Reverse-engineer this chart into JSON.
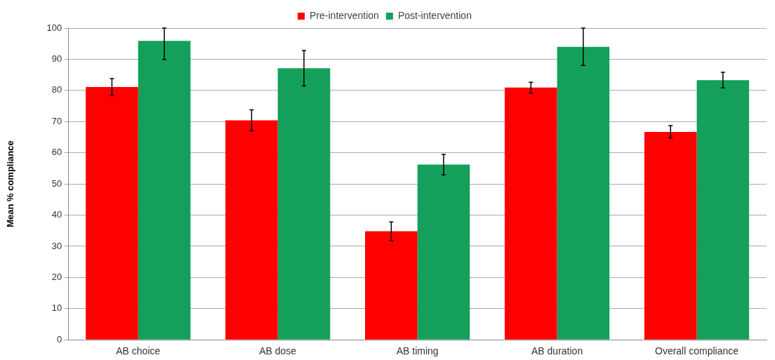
{
  "chart_data": {
    "type": "bar",
    "ylabel": "Mean % compliance",
    "categories": [
      "AB choice",
      "AB dose",
      "AB timing",
      "AB duration",
      "Overall compliance"
    ],
    "series": [
      {
        "name": "Pre-intervention",
        "color": "#ff0000",
        "values": [
          81.1,
          70.4,
          34.8,
          80.9,
          66.7
        ],
        "errors": [
          2.7,
          3.4,
          3,
          1.7,
          2
        ]
      },
      {
        "name": "Post-intervention",
        "color": "#14a05a",
        "values": [
          95.9,
          87.1,
          56.2,
          94,
          83.3
        ],
        "errors": [
          [
            89.9,
            100
          ],
          5.7,
          3.3,
          6,
          2.5
        ]
      }
    ],
    "ylim": [
      0,
      100
    ],
    "yticks": [
      0,
      10,
      20,
      30,
      40,
      50,
      60,
      70,
      80,
      90,
      100
    ],
    "grid": "y",
    "legend": "top"
  }
}
